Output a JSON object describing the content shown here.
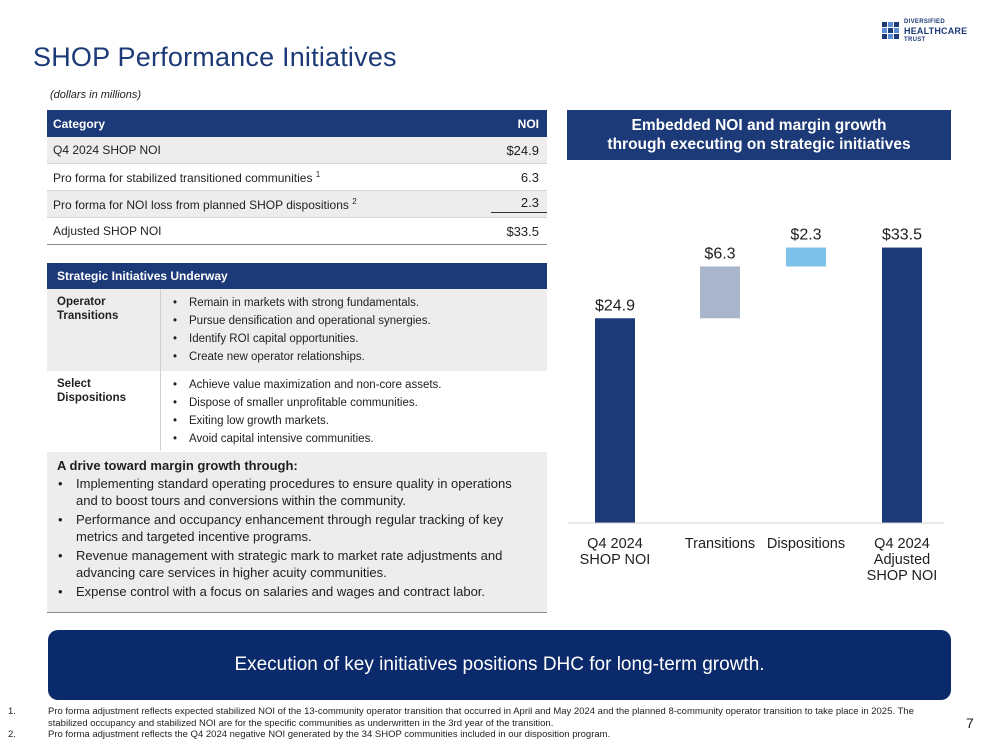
{
  "header": {
    "title": "SHOP Performance Initiatives",
    "subtitle": "(dollars in millions)",
    "logo": {
      "line1": "DIVERSIFIED",
      "line2": "HEALTHCARE",
      "line3": "TRUST"
    }
  },
  "noi_table": {
    "col_category": "Category",
    "col_noi": "NOI",
    "rows": [
      {
        "label": "Q4 2024 SHOP NOI",
        "sup": "",
        "value": "$24.9"
      },
      {
        "label": "Pro forma for stabilized transitioned communities",
        "sup": "1",
        "value": "6.3"
      },
      {
        "label": "Pro forma for NOI loss from planned SHOP dispositions",
        "sup": "2",
        "value": "2.3"
      },
      {
        "label": "Adjusted SHOP NOI",
        "sup": "",
        "value": "$33.5"
      }
    ]
  },
  "strategic": {
    "header": "Strategic Initiatives Underway",
    "rows": [
      {
        "label_line1": "Operator",
        "label_line2": "Transitions",
        "items": [
          "Remain in markets with strong fundamentals.",
          "Pursue densification and operational synergies.",
          "Identify ROI capital opportunities.",
          "Create new operator relationships."
        ]
      },
      {
        "label_line1": "Select",
        "label_line2": "Dispositions",
        "items": [
          "Achieve value maximization and non-core assets.",
          "Dispose of smaller unprofitable communities.",
          "Exiting low growth markets.",
          "Avoid capital intensive communities."
        ]
      }
    ]
  },
  "drive": {
    "title": "A drive toward margin growth through:",
    "items": [
      "Implementing standard operating procedures to ensure quality in operations and to boost tours and conversions within the community.",
      "Performance and occupancy enhancement through regular tracking of key metrics and targeted incentive programs.",
      "Revenue management with strategic mark to market rate adjustments and advancing care services in higher acuity communities.",
      "Expense control with a focus on salaries and wages and contract labor."
    ]
  },
  "chart_header": {
    "line1": "Embedded NOI and margin growth",
    "line2": "through executing on strategic initiatives"
  },
  "chart_data": {
    "type": "bar",
    "subtype": "waterfall",
    "title": "Embedded NOI and margin growth through executing on strategic initiatives",
    "categories": [
      "Q4 2024 SHOP NOI",
      "Transitions",
      "Dispositions",
      "Q4 2024 Adjusted SHOP NOI"
    ],
    "category_lines": [
      [
        "Q4 2024",
        "SHOP NOI"
      ],
      [
        "Transitions"
      ],
      [
        "Dispositions"
      ],
      [
        "Q4 2024",
        "Adjusted",
        "SHOP NOI"
      ]
    ],
    "values": [
      24.9,
      6.3,
      2.3,
      33.5
    ],
    "bases": [
      0,
      24.9,
      31.2,
      0
    ],
    "data_labels": [
      "$24.9",
      "$6.3",
      "$2.3",
      "$33.5"
    ],
    "colors": [
      "#1d3a78",
      "#a9b5cb",
      "#7ec1e8",
      "#1d3a78"
    ],
    "ylim": [
      0,
      36
    ],
    "xlabel": "",
    "ylabel": ""
  },
  "banner": {
    "text": "Execution of key initiatives positions DHC for long-term growth."
  },
  "footnotes": [
    {
      "num": "1.",
      "text": "Pro forma adjustment reflects expected stabilized NOI of the 13-community operator transition that occurred in April and May 2024 and the planned 8-community operator transition to take place in 2025. The stabilized occupancy and stabilized NOI are for the specific communities as underwritten in the 3rd year of the transition."
    },
    {
      "num": "2.",
      "text": "Pro forma adjustment reflects the Q4 2024 negative NOI generated by the 34 SHOP communities included in our disposition program."
    }
  ],
  "page_number": "7"
}
